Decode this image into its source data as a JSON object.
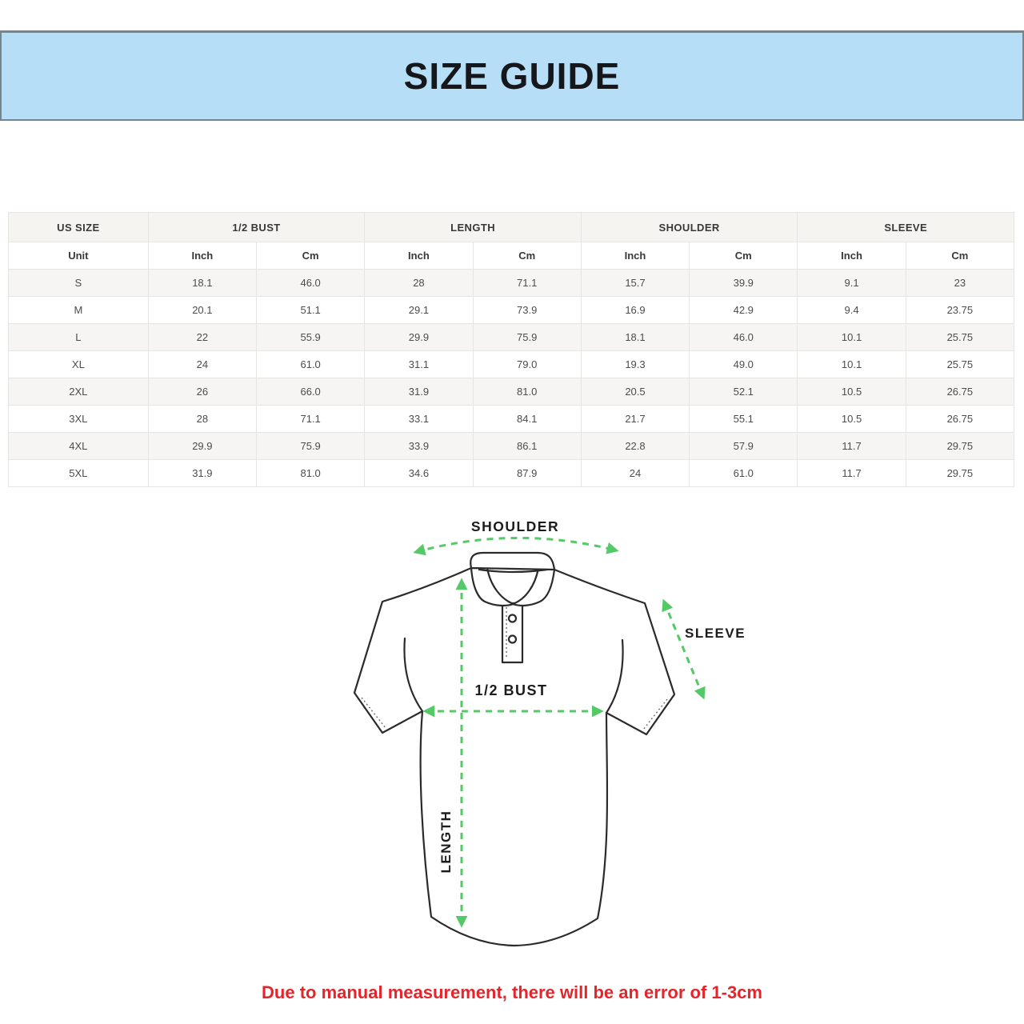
{
  "banner": {
    "title": "SIZE GUIDE"
  },
  "table": {
    "groups": [
      {
        "label": "US SIZE",
        "span": 1
      },
      {
        "label": "1/2 BUST",
        "span": 2
      },
      {
        "label": "LENGTH",
        "span": 2
      },
      {
        "label": "SHOULDER",
        "span": 2
      },
      {
        "label": "SLEEVE",
        "span": 2
      }
    ],
    "unit_row": [
      "Unit",
      "Inch",
      "Cm",
      "Inch",
      "Cm",
      "Inch",
      "Cm",
      "Inch",
      "Cm"
    ],
    "rows": [
      [
        "S",
        "18.1",
        "46.0",
        "28",
        "71.1",
        "15.7",
        "39.9",
        "9.1",
        "23"
      ],
      [
        "M",
        "20.1",
        "51.1",
        "29.1",
        "73.9",
        "16.9",
        "42.9",
        "9.4",
        "23.75"
      ],
      [
        "L",
        "22",
        "55.9",
        "29.9",
        "75.9",
        "18.1",
        "46.0",
        "10.1",
        "25.75"
      ],
      [
        "XL",
        "24",
        "61.0",
        "31.1",
        "79.0",
        "19.3",
        "49.0",
        "10.1",
        "25.75"
      ],
      [
        "2XL",
        "26",
        "66.0",
        "31.9",
        "81.0",
        "20.5",
        "52.1",
        "10.5",
        "26.75"
      ],
      [
        "3XL",
        "28",
        "71.1",
        "33.1",
        "84.1",
        "21.7",
        "55.1",
        "10.5",
        "26.75"
      ],
      [
        "4XL",
        "29.9",
        "75.9",
        "33.9",
        "86.1",
        "22.8",
        "57.9",
        "11.7",
        "29.75"
      ],
      [
        "5XL",
        "31.9",
        "81.0",
        "34.6",
        "87.9",
        "24",
        "61.0",
        "11.7",
        "29.75"
      ]
    ]
  },
  "diagram": {
    "labels": {
      "shoulder": "SHOULDER",
      "sleeve": "SLEEVE",
      "bust": "1/2 BUST",
      "length": "LENGTH"
    },
    "colors": {
      "arrow_green": "#55c868",
      "banner_blue": "#b6def7",
      "note_red": "#e4252b"
    }
  },
  "note": {
    "text": "Due to manual measurement, there will be an error of 1-3cm"
  }
}
